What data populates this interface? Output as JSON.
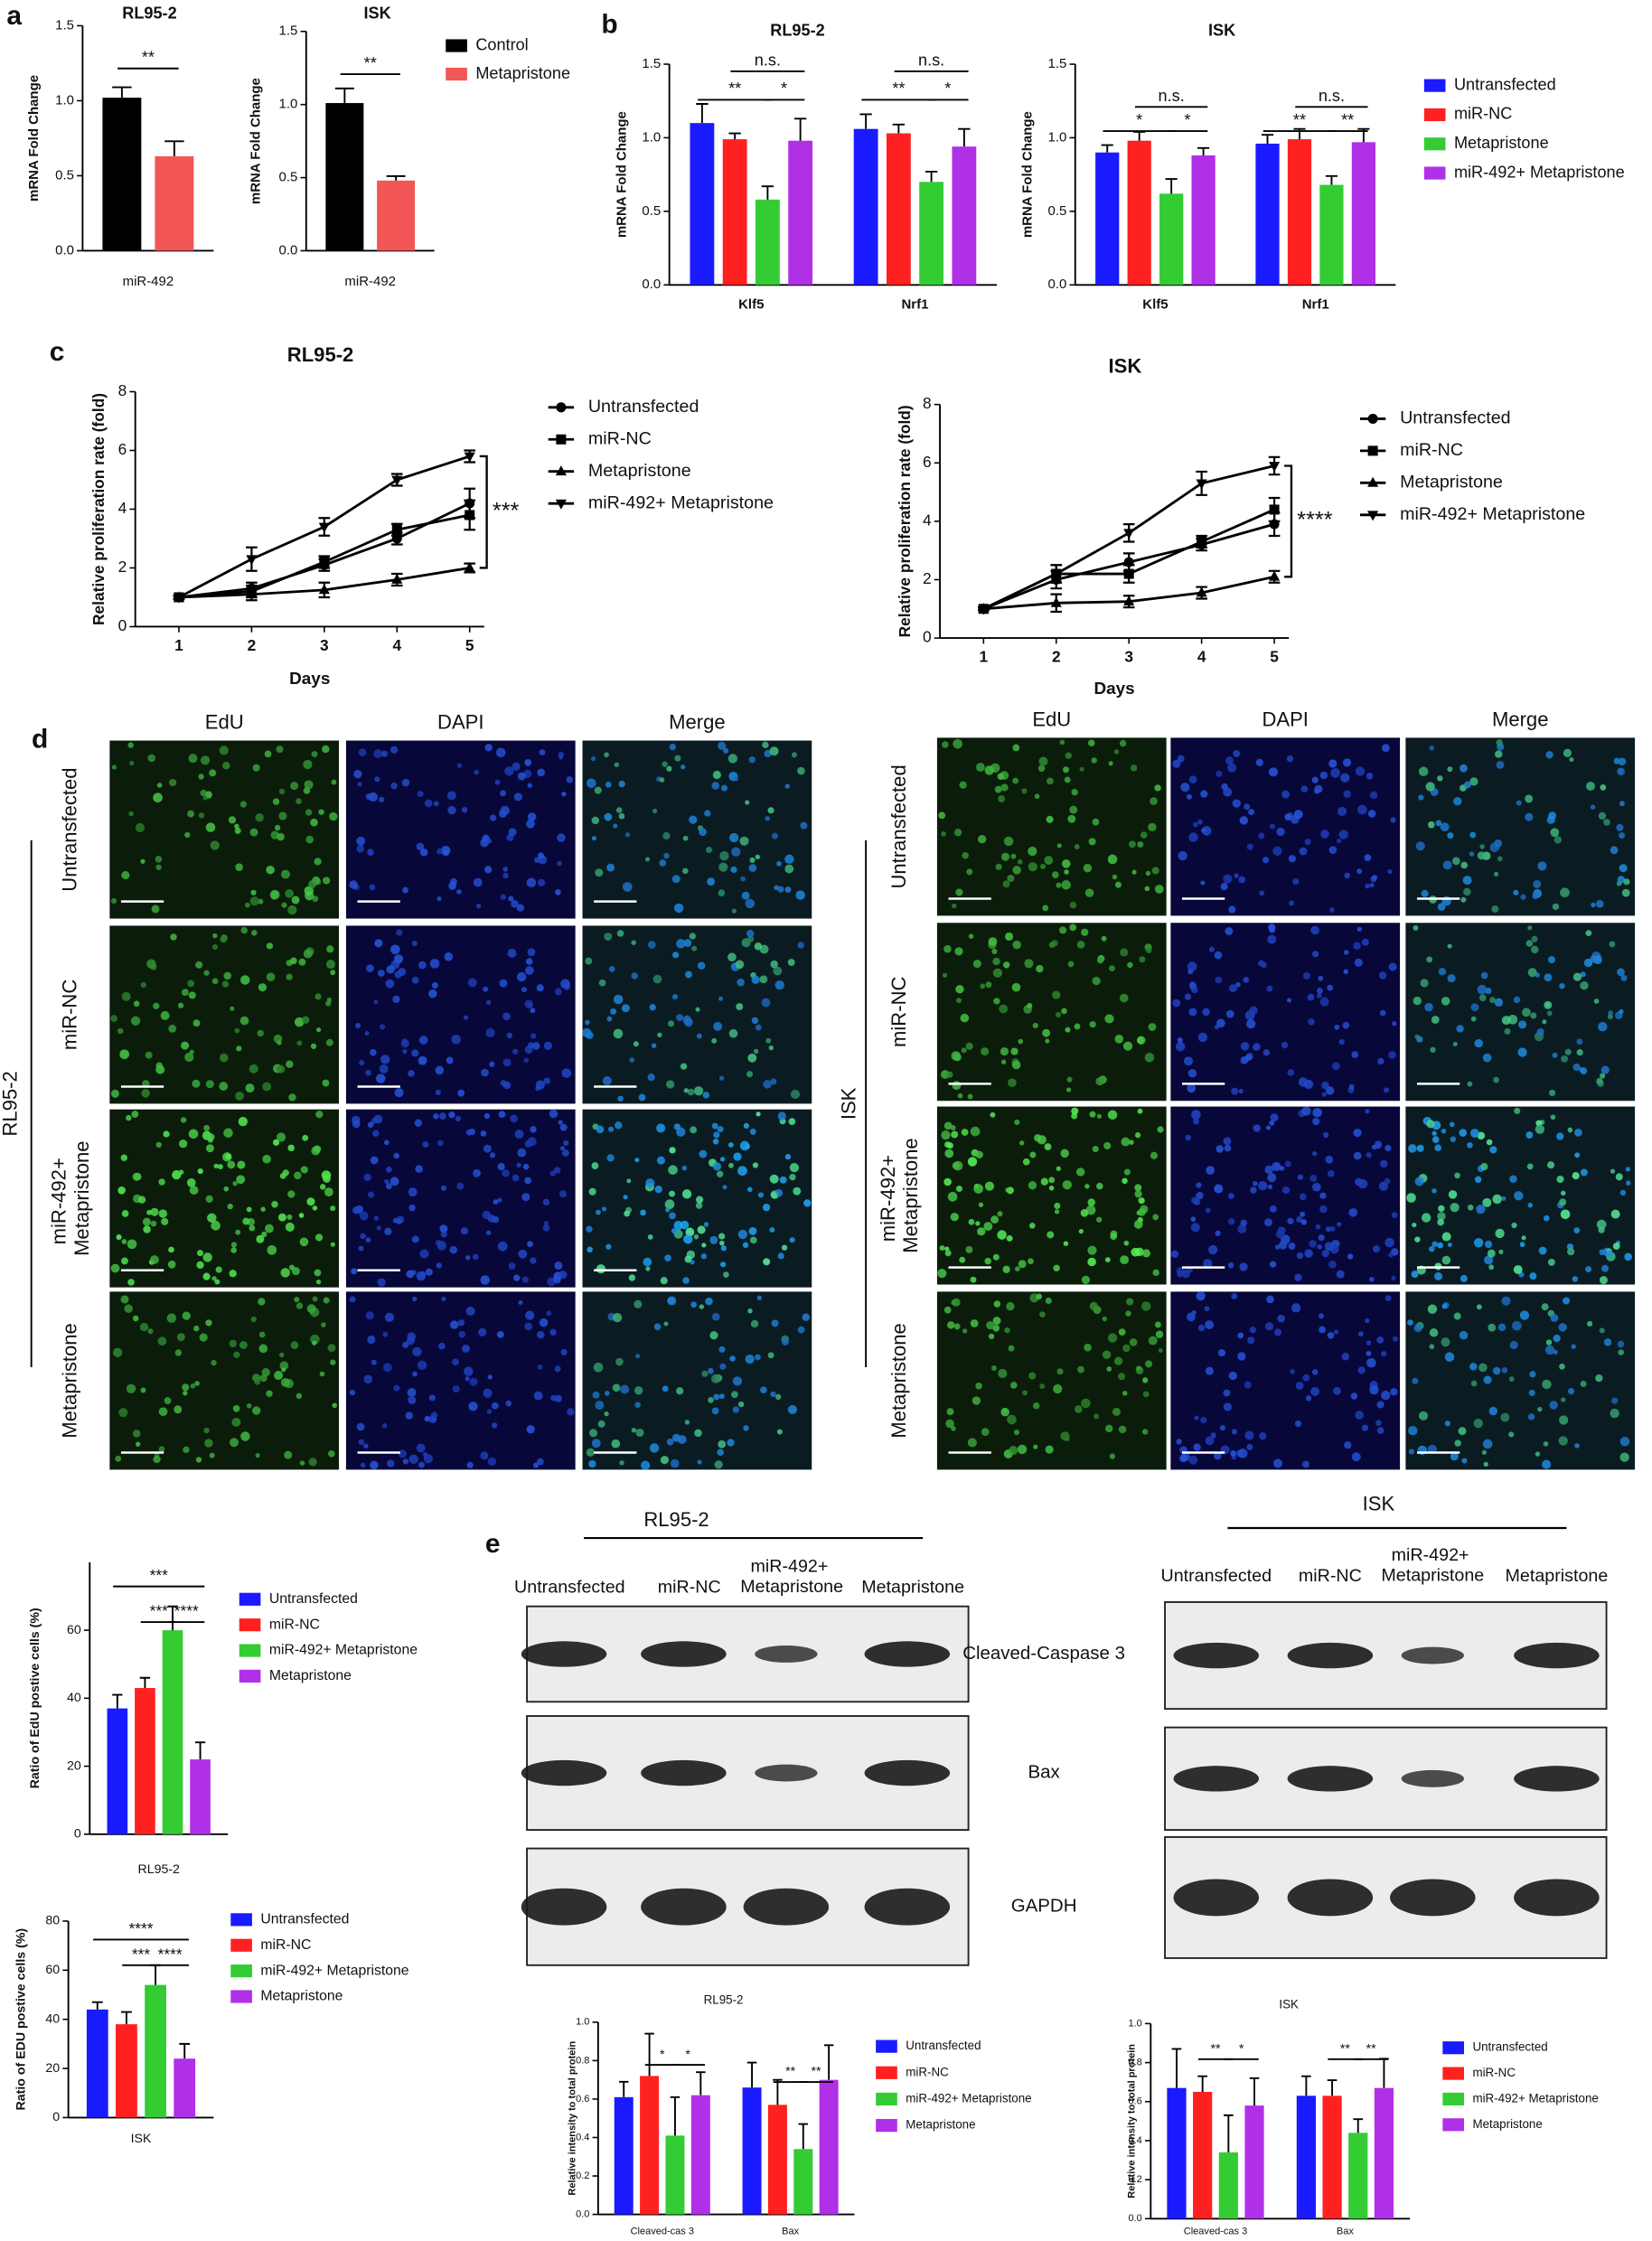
{
  "panel_labels": [
    "a",
    "b",
    "c",
    "d",
    "e"
  ],
  "chart_data": [
    {
      "type": "bar",
      "title": "RL95-2",
      "ylabel": "mRNA Fold Change",
      "categories": [
        "miR-492"
      ],
      "series": [
        {
          "color": "#000000",
          "values": [
            1.02
          ],
          "errors": [
            0.07
          ]
        },
        {
          "color": "#f25656",
          "values": [
            0.63
          ],
          "errors": [
            0.1
          ]
        }
      ],
      "ylim": [
        0,
        1.5
      ],
      "yticks": [
        {
          "value": 0,
          "label": "0.0"
        },
        0.5,
        {
          "value": 1,
          "label": "1.0"
        },
        1.5
      ],
      "annotations": [
        "**"
      ]
    },
    {
      "type": "bar",
      "title": "ISK",
      "ylabel": "mRNA Fold Change",
      "categories": [
        "miR-492"
      ],
      "series": [
        {
          "name": "Control",
          "color": "#000000",
          "values": [
            1.01
          ],
          "errors": [
            0.1
          ]
        },
        {
          "name": "Metapristone",
          "color": "#f25656",
          "values": [
            0.48
          ],
          "errors": [
            0.03
          ]
        }
      ],
      "ylim": [
        0,
        1.5
      ],
      "yticks": [
        {
          "value": 0,
          "label": "0.0"
        },
        0.5,
        {
          "value": 1,
          "label": "1.0"
        },
        1.5
      ],
      "annotations": [
        "**"
      ]
    },
    {
      "type": "bar",
      "title": "RL95-2",
      "ylabel": "mRNA Fold Change",
      "categories": [
        "Klf5",
        "Nrf1"
      ],
      "series": [
        {
          "color": "#1a1aff",
          "values": [
            1.1,
            1.06
          ],
          "errors": [
            0.13,
            0.1
          ]
        },
        {
          "color": "#ff2020",
          "values": [
            0.99,
            1.03
          ],
          "errors": [
            0.04,
            0.06
          ]
        },
        {
          "color": "#33cc33",
          "values": [
            0.58,
            0.7
          ],
          "errors": [
            0.09,
            0.07
          ]
        },
        {
          "color": "#b030e8",
          "values": [
            0.98,
            0.94
          ],
          "errors": [
            0.15,
            0.12
          ]
        }
      ],
      "ylim": [
        0,
        1.5
      ],
      "yticks": [
        {
          "value": 0,
          "label": "0.0"
        },
        0.5,
        {
          "value": 1,
          "label": "1.0"
        },
        1.5
      ],
      "annotations": [
        "n.s.",
        "**",
        "*",
        "n.s.",
        "**",
        "*"
      ]
    },
    {
      "type": "bar",
      "title": "ISK",
      "ylabel": "mRNA Fold Change",
      "categories": [
        "Klf5",
        "Nrf1"
      ],
      "series": [
        {
          "name": "Untransfected",
          "color": "#1a1aff",
          "values": [
            0.9,
            0.96
          ],
          "errors": [
            0.05,
            0.06
          ]
        },
        {
          "name": "miR-NC",
          "color": "#ff2020",
          "values": [
            0.98,
            0.99
          ],
          "errors": [
            0.06,
            0.07
          ]
        },
        {
          "name": "Metapristone",
          "color": "#33cc33",
          "values": [
            0.62,
            0.68
          ],
          "errors": [
            0.1,
            0.06
          ]
        },
        {
          "name": "miR-492+ Metapristone",
          "color": "#b030e8",
          "values": [
            0.88,
            0.97
          ],
          "errors": [
            0.05,
            0.09
          ]
        }
      ],
      "ylim": [
        0,
        1.5
      ],
      "yticks": [
        {
          "value": 0,
          "label": "0.0"
        },
        0.5,
        {
          "value": 1,
          "label": "1.0"
        },
        1.5
      ],
      "annotations": [
        "n.s.",
        "*",
        "*",
        "n.s.",
        "**",
        "**"
      ]
    },
    {
      "type": "line",
      "title": "RL95-2",
      "xlabel": "Days",
      "ylabel": "Relative proliferation rate (fold)",
      "x": [
        1,
        2,
        3,
        4,
        5
      ],
      "series": [
        {
          "name": "Untransfected",
          "color": "#000000",
          "marker": "circle",
          "values": [
            1,
            1.3,
            2.1,
            3.0,
            4.2
          ],
          "errors": [
            0.05,
            0.2,
            0.2,
            0.2,
            0.5
          ]
        },
        {
          "name": "miR-NC",
          "color": "#000000",
          "marker": "square",
          "values": [
            1,
            1.2,
            2.2,
            3.3,
            3.8
          ],
          "errors": [
            0.05,
            0.2,
            0.2,
            0.2,
            0.5
          ]
        },
        {
          "name": "Metapristone",
          "color": "#000000",
          "marker": "triangle-up",
          "values": [
            1,
            1.1,
            1.25,
            1.6,
            2.0
          ],
          "errors": [
            0.05,
            0.2,
            0.25,
            0.2,
            0.15
          ]
        },
        {
          "name": "miR-492+ Metapristone",
          "color": "#000000",
          "marker": "triangle-down",
          "values": [
            1,
            2.3,
            3.4,
            5.0,
            5.8
          ],
          "errors": [
            0.05,
            0.4,
            0.3,
            0.2,
            0.2
          ]
        }
      ],
      "xlim": [
        0.4,
        5.2
      ],
      "xticks": [
        1,
        2,
        3,
        4,
        5
      ],
      "ylim": [
        0,
        8
      ],
      "yticks": [
        0,
        2,
        4,
        6,
        8
      ],
      "annotations": [
        "***"
      ]
    },
    {
      "type": "line",
      "title": "ISK",
      "xlabel": "Days",
      "ylabel": "Relative proliferation rate (fold)",
      "x": [
        1,
        2,
        3,
        4,
        5
      ],
      "series": [
        {
          "name": "Untransfected",
          "color": "#000000",
          "marker": "circle",
          "values": [
            1,
            2.0,
            2.6,
            3.2,
            3.9
          ],
          "errors": [
            0.05,
            0.3,
            0.3,
            0.2,
            0.4
          ]
        },
        {
          "name": "miR-NC",
          "color": "#000000",
          "marker": "square",
          "values": [
            1,
            2.2,
            2.2,
            3.3,
            4.4
          ],
          "errors": [
            0.05,
            0.3,
            0.3,
            0.2,
            0.4
          ]
        },
        {
          "name": "Metapristone",
          "color": "#000000",
          "marker": "triangle-up",
          "values": [
            1,
            1.2,
            1.25,
            1.55,
            2.1
          ],
          "errors": [
            0.05,
            0.3,
            0.2,
            0.2,
            0.2
          ]
        },
        {
          "name": "miR-492+ Metapristone",
          "color": "#000000",
          "marker": "triangle-down",
          "values": [
            1,
            2.2,
            3.6,
            5.3,
            5.9
          ],
          "errors": [
            0.05,
            0.3,
            0.3,
            0.4,
            0.3
          ]
        }
      ],
      "xlim": [
        0.4,
        5.2
      ],
      "xticks": [
        1,
        2,
        3,
        4,
        5
      ],
      "ylim": [
        0,
        8
      ],
      "yticks": [
        0,
        2,
        4,
        6,
        8
      ],
      "annotations": [
        "****"
      ]
    },
    {
      "type": "bar",
      "ylabel": "Ratio of EdU postive cells (%)",
      "categories": [
        "RL95-2"
      ],
      "series": [
        {
          "name": "Untransfected",
          "color": "#1a1aff",
          "values": [
            37
          ],
          "errors": [
            4
          ]
        },
        {
          "name": "miR-NC",
          "color": "#ff2020",
          "values": [
            43
          ],
          "errors": [
            3
          ]
        },
        {
          "name": "miR-492+ Metapristone",
          "color": "#33cc33",
          "values": [
            60
          ],
          "errors": [
            7
          ]
        },
        {
          "name": "Metapristone",
          "color": "#b030e8",
          "values": [
            22
          ],
          "errors": [
            5
          ]
        }
      ],
      "ylim": [
        0,
        80
      ],
      "yticks": [
        0,
        20,
        40,
        60
      ],
      "annotations": [
        "***",
        "***",
        "****"
      ]
    },
    {
      "type": "bar",
      "ylabel": "Ratio of EDU postive cells (%)",
      "categories": [
        "ISK"
      ],
      "series": [
        {
          "name": "Untransfected",
          "color": "#1a1aff",
          "values": [
            44
          ],
          "errors": [
            3
          ]
        },
        {
          "name": "miR-NC",
          "color": "#ff2020",
          "values": [
            38
          ],
          "errors": [
            5
          ]
        },
        {
          "name": "miR-492+ Metapristone",
          "color": "#33cc33",
          "values": [
            54
          ],
          "errors": [
            8
          ]
        },
        {
          "name": "Metapristone",
          "color": "#b030e8",
          "values": [
            24
          ],
          "errors": [
            6
          ]
        }
      ],
      "ylim": [
        0,
        80
      ],
      "yticks": [
        0,
        20,
        40,
        60,
        80
      ],
      "annotations": [
        "****",
        "***",
        "****"
      ]
    },
    {
      "type": "bar",
      "title": "RL95-2",
      "ylabel": "Relative intensity to total protein",
      "categories": [
        "Cleaved-cas 3",
        "Bax"
      ],
      "series": [
        {
          "name": "Untransfected",
          "color": "#1a1aff",
          "values": [
            0.61,
            0.66
          ],
          "errors": [
            0.08,
            0.13
          ]
        },
        {
          "name": "miR-NC",
          "color": "#ff2020",
          "values": [
            0.72,
            0.57
          ],
          "errors": [
            0.22,
            0.13
          ]
        },
        {
          "name": "miR-492+ Metapristone",
          "color": "#33cc33",
          "values": [
            0.41,
            0.34
          ],
          "errors": [
            0.2,
            0.13
          ]
        },
        {
          "name": "Metapristone",
          "color": "#b030e8",
          "values": [
            0.62,
            0.7
          ],
          "errors": [
            0.12,
            0.18
          ]
        }
      ],
      "ylim": [
        0,
        1
      ],
      "yticks": [
        {
          "value": 0,
          "label": "0.0"
        },
        0.2,
        0.4,
        0.6,
        0.8,
        {
          "value": 1,
          "label": "1.0"
        }
      ],
      "annotations": [
        "*",
        "*",
        "**",
        "**"
      ]
    },
    {
      "type": "bar",
      "title": "ISK",
      "ylabel": "Relative intensity to total protein",
      "categories": [
        "Cleaved-cas 3",
        "Bax"
      ],
      "series": [
        {
          "name": "Untransfected",
          "color": "#1a1aff",
          "values": [
            0.67,
            0.63
          ],
          "errors": [
            0.2,
            0.1
          ]
        },
        {
          "name": "miR-NC",
          "color": "#ff2020",
          "values": [
            0.65,
            0.63
          ],
          "errors": [
            0.08,
            0.08
          ]
        },
        {
          "name": "miR-492+ Metapristone",
          "color": "#33cc33",
          "values": [
            0.34,
            0.44
          ],
          "errors": [
            0.19,
            0.07
          ]
        },
        {
          "name": "Metapristone",
          "color": "#b030e8",
          "values": [
            0.58,
            0.67
          ],
          "errors": [
            0.14,
            0.15
          ]
        }
      ],
      "ylim": [
        0,
        1
      ],
      "yticks": [
        {
          "value": 0,
          "label": "0.0"
        },
        0.2,
        0.4,
        0.6,
        0.8,
        {
          "value": 1,
          "label": "1.0"
        }
      ],
      "annotations": [
        "**",
        "*",
        "**",
        "**"
      ]
    }
  ],
  "microscopy": [
    {
      "cell": "RL95-2",
      "columns": [
        "EdU",
        "DAPI",
        "Merge"
      ],
      "rows": [
        "Untransfected",
        "miR-NC",
        "miR-492+ Metapristone",
        "Metapristone"
      ]
    },
    {
      "cell": "ISK",
      "columns": [
        "EdU",
        "DAPI",
        "Merge"
      ],
      "rows": [
        "Untransfected",
        "miR-NC",
        "miR-492+ Metapristone",
        "Metapristone"
      ]
    }
  ],
  "western": [
    {
      "cell": "RL95-2",
      "lanes": [
        "Untransfected",
        "miR-NC",
        "miR-492+ Metapristone",
        "Metapristone"
      ],
      "proteins": [
        "Cleaved-Caspase 3",
        "Bax",
        "GAPDH"
      ]
    },
    {
      "cell": "ISK",
      "lanes": [
        "Untransfected",
        "miR-NC",
        "miR-492+ Metapristone",
        "Metapristone"
      ]
    }
  ]
}
